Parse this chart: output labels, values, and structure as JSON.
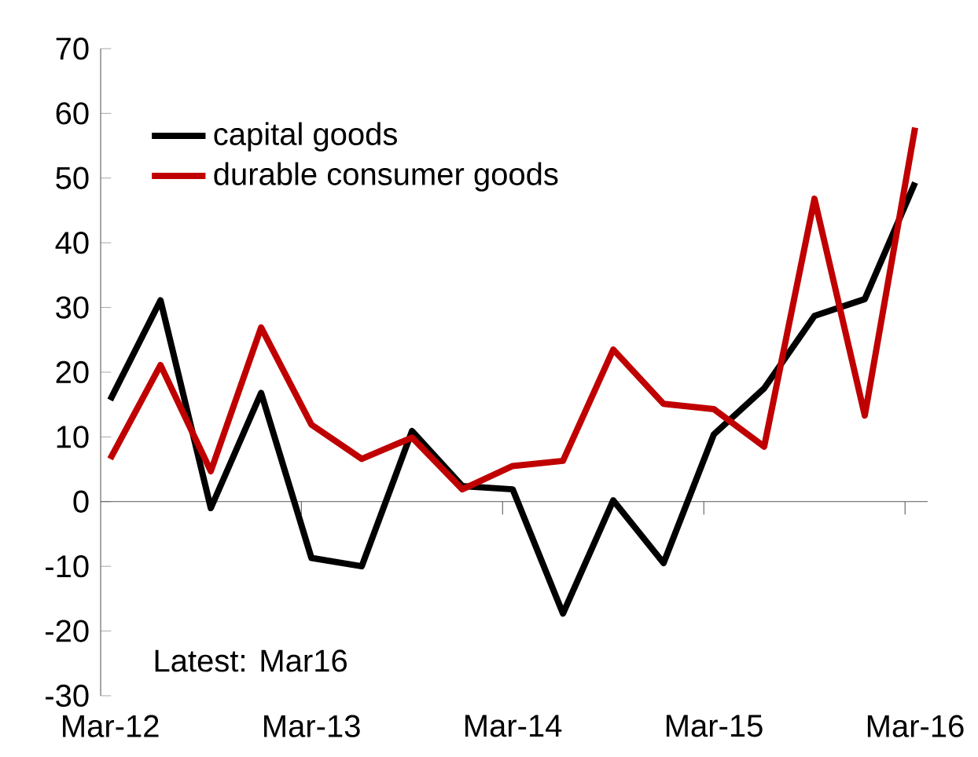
{
  "chart_data": {
    "type": "line",
    "categories": [
      "Mar-12",
      null,
      null,
      null,
      "Mar-13",
      null,
      null,
      null,
      "Mar-14",
      null,
      null,
      null,
      "Mar-15",
      null,
      null,
      null,
      "Mar-16"
    ],
    "series": [
      {
        "name": "capital goods",
        "color": "#000000",
        "values": [
          15.7,
          31.1,
          -1,
          16.8,
          -8.7,
          -10,
          10.9,
          2.4,
          1.9,
          -17.3,
          0.2,
          -9.5,
          10.4,
          17.5,
          28.7,
          31.3,
          49.3
        ]
      },
      {
        "name": "durable consumer goods",
        "color": "#c00000",
        "values": [
          6.6,
          21.1,
          4.7,
          26.9,
          11.9,
          6.6,
          9.9,
          1.9,
          5.5,
          6.3,
          23.5,
          15.1,
          14.3,
          8.5,
          46.8,
          13.3,
          57.8
        ]
      }
    ],
    "ylim": [
      -30,
      70
    ],
    "yticks": [
      -30,
      -20,
      -10,
      0,
      10,
      20,
      30,
      40,
      50,
      60,
      70
    ],
    "legend": "top left",
    "marker": "none",
    "line_style": "solid",
    "annotations": [
      "Latest: Mar16"
    ]
  }
}
